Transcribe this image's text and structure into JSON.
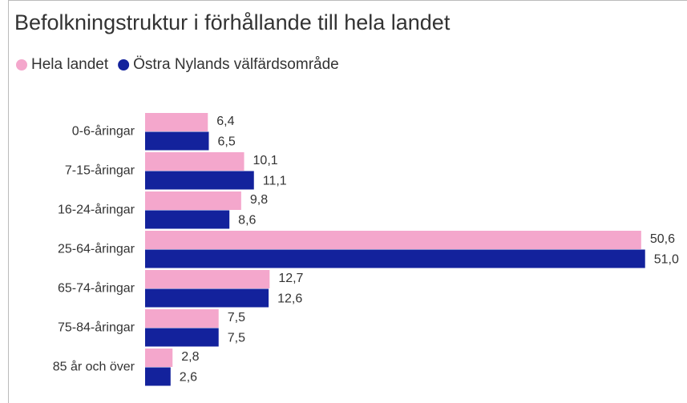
{
  "chart_data": {
    "type": "barh",
    "title": "Befolkningstruktur i förhållande till hela landet",
    "categories": [
      "0-6-åringar",
      "7-15-åringar",
      "16-24-åringar",
      "25-64-åringar",
      "65-74-åringar",
      "75-84-åringar",
      "85 år och över"
    ],
    "series": [
      {
        "name": "Hela landet",
        "color": "#f4a7cc",
        "values": [
          6.4,
          10.1,
          9.8,
          50.6,
          12.7,
          7.5,
          2.8
        ],
        "value_labels": [
          "6,4",
          "10,1",
          "9,8",
          "50,6",
          "12,7",
          "7,5",
          "2,8"
        ]
      },
      {
        "name": "Östra Nylands välfärdsområde",
        "color": "#13229c",
        "values": [
          6.5,
          11.1,
          8.6,
          51.0,
          12.6,
          7.5,
          2.6
        ],
        "value_labels": [
          "6,5",
          "11,1",
          "8,6",
          "51,0",
          "12,6",
          "7,5",
          "2,6"
        ]
      }
    ],
    "legend": "top-left"
  }
}
